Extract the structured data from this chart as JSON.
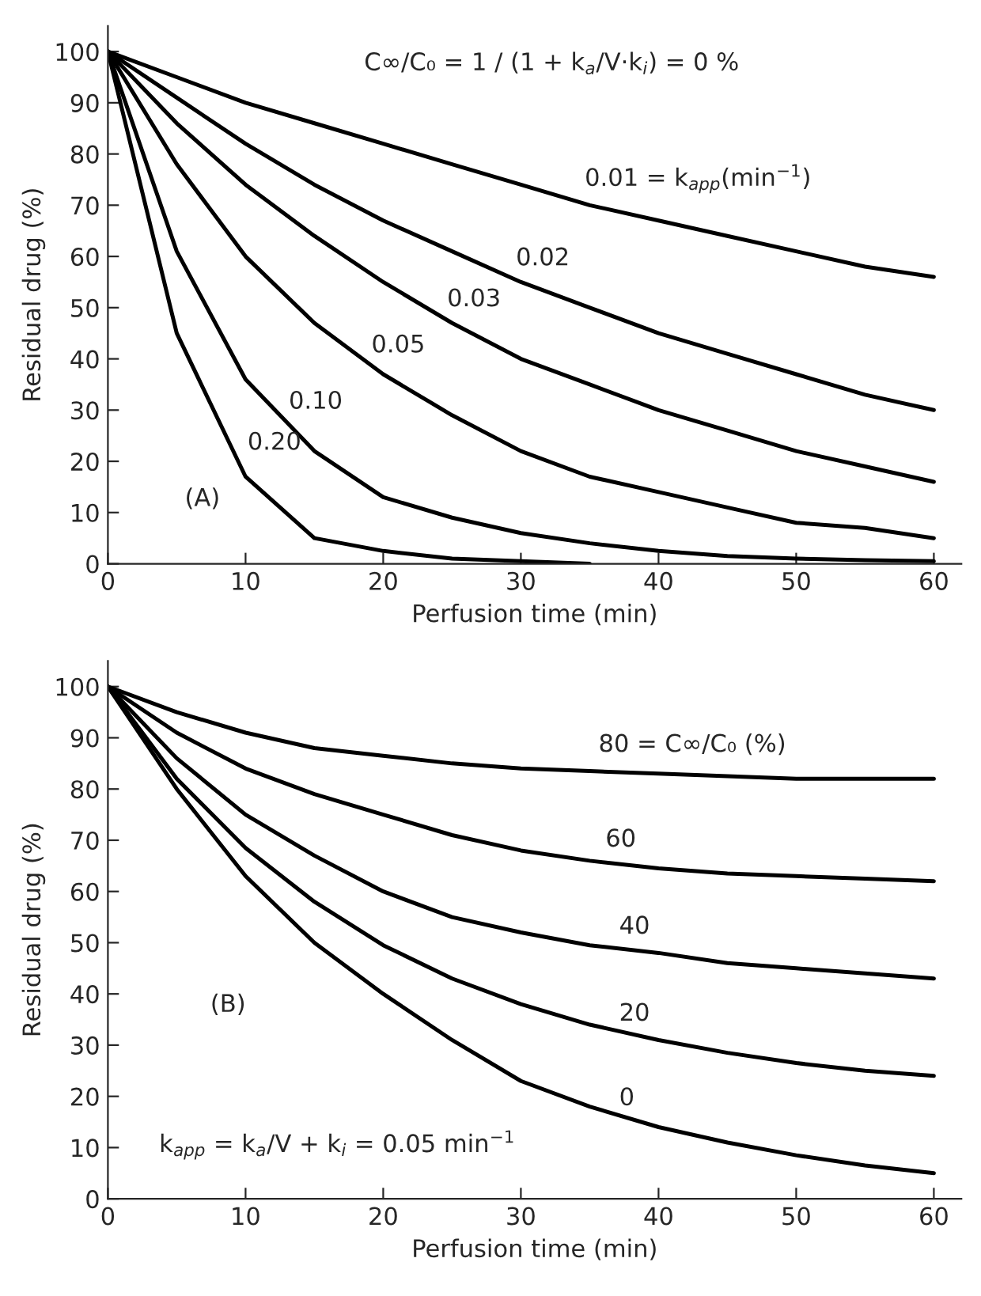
{
  "chart_data": [
    {
      "type": "line",
      "xlabel": "Perfusion time (min)",
      "ylabel": "Residual drug (%)",
      "x": [
        0,
        5,
        10,
        15,
        20,
        25,
        30,
        35,
        40,
        45,
        50,
        55,
        60
      ],
      "series": [
        {
          "color": "#000000",
          "values": [
            100,
            95,
            90,
            86,
            82,
            78,
            74,
            70,
            67,
            64,
            61,
            58,
            56
          ]
        },
        {
          "color": "#000000",
          "values": [
            100,
            91,
            82,
            74,
            67,
            61,
            55,
            50,
            45,
            41,
            37,
            33,
            30
          ]
        },
        {
          "color": "#000000",
          "values": [
            100,
            86,
            74,
            64,
            55,
            47,
            40,
            35,
            30,
            26,
            22,
            19,
            16
          ]
        },
        {
          "color": "#000000",
          "values": [
            100,
            78,
            60,
            47,
            37,
            29,
            22,
            17,
            14,
            11,
            8,
            7,
            5
          ]
        },
        {
          "color": "#000000",
          "values": [
            100,
            61,
            36,
            22,
            13,
            9,
            6,
            4,
            2.5,
            1.5,
            1,
            0.7,
            0.5
          ]
        },
        {
          "color": "#000000",
          "x": [
            0,
            5,
            10,
            15,
            20,
            25,
            30,
            35
          ],
          "values": [
            100,
            45,
            17,
            5,
            2.5,
            1,
            0.5,
            0
          ]
        }
      ],
      "annotations": [
        "C∞/C₀ = 1 / (1 + k$_{a}$/V·k$_{i}$) = 0 %",
        "(A)",
        {
          "text": "0.01 = k$_{app}$(min$^{−1}$)",
          "x": 34,
          "y": 71
        },
        {
          "text": "0.02",
          "x": 29,
          "y": 56
        },
        {
          "text": "0.03",
          "x": 24,
          "y": 48
        },
        {
          "text": "0.05",
          "x": 18.5,
          "y": 39
        },
        {
          "text": "0.10",
          "x": 12.5,
          "y": 28
        },
        {
          "text": "0.20",
          "x": 9.5,
          "y": 20
        }
      ],
      "xlim": [
        0,
        62
      ],
      "ylim": [
        0,
        105
      ],
      "xticks": [
        0,
        10,
        20,
        30,
        40,
        50,
        60
      ],
      "yticks": [
        0,
        10,
        20,
        30,
        40,
        50,
        60,
        70,
        80,
        90,
        100
      ],
      "grid": false,
      "line_style": "solid",
      "marker": "none"
    },
    {
      "type": "line",
      "xlabel": "Perfusion time (min)",
      "ylabel": "Residual drug (%)",
      "x": [
        0,
        5,
        10,
        15,
        20,
        25,
        30,
        35,
        40,
        45,
        50,
        55,
        60
      ],
      "series": [
        {
          "color": "#000000",
          "values": [
            100,
            95,
            91,
            88,
            86.5,
            85,
            84,
            83.5,
            83,
            82.5,
            82,
            82,
            82
          ]
        },
        {
          "color": "#000000",
          "values": [
            100,
            91,
            84,
            79,
            75,
            71,
            68,
            66,
            64.5,
            63.5,
            63,
            62.5,
            62
          ]
        },
        {
          "color": "#000000",
          "values": [
            100,
            86,
            75,
            67,
            60,
            55,
            52,
            49.5,
            48,
            46,
            45,
            44,
            43
          ]
        },
        {
          "color": "#000000",
          "values": [
            100,
            82,
            68.5,
            58,
            49.5,
            43,
            38,
            34,
            31,
            28.5,
            26.5,
            25,
            24
          ]
        },
        {
          "color": "#000000",
          "values": [
            100,
            80,
            63,
            50,
            40,
            31,
            23,
            18,
            14,
            11,
            8.5,
            6.5,
            5
          ]
        }
      ],
      "annotations": [
        "(B)",
        "k$_{app}$ = k$_{a}$/V + k$_{i}$ = 0.05 min$^{−1}$",
        {
          "text": "80 = C∞/C₀ (%)",
          "x": 35,
          "y": 85
        },
        {
          "text": "60",
          "x": 35.5,
          "y": 66.5
        },
        {
          "text": "40",
          "x": 36.5,
          "y": 49.5
        },
        {
          "text": "20",
          "x": 36.5,
          "y": 32.5
        },
        {
          "text": "0",
          "x": 36.5,
          "y": 16
        }
      ],
      "xlim": [
        0,
        62
      ],
      "ylim": [
        0,
        105
      ],
      "xticks": [
        0,
        10,
        20,
        30,
        40,
        50,
        60
      ],
      "yticks": [
        0,
        10,
        20,
        30,
        40,
        50,
        60,
        70,
        80,
        90,
        100
      ],
      "grid": false,
      "line_style": "solid",
      "marker": "none"
    }
  ]
}
